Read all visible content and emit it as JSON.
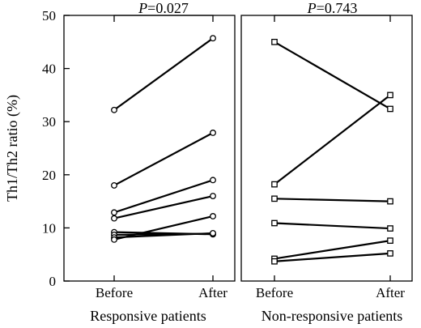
{
  "chart_data": {
    "type": "line",
    "ylabel": "Th1/Th2 ratio (%)",
    "ylim": [
      0,
      50
    ],
    "yticks": [
      0,
      10,
      20,
      30,
      40,
      50
    ],
    "panels": [
      {
        "xlabel": "Responsive patients",
        "categories": [
          "Before",
          "After"
        ],
        "p_value": "=0.027",
        "marker": "circle",
        "series": [
          {
            "values": [
              32.2,
              45.7
            ]
          },
          {
            "values": [
              18.0,
              27.9
            ]
          },
          {
            "values": [
              12.9,
              19.0
            ]
          },
          {
            "values": [
              11.8,
              16.0
            ]
          },
          {
            "values": [
              9.2,
              8.8
            ]
          },
          {
            "values": [
              8.7,
              8.9
            ]
          },
          {
            "values": [
              8.2,
              9.0
            ]
          },
          {
            "values": [
              7.8,
              12.2
            ]
          }
        ]
      },
      {
        "xlabel": "Non-responsive patients",
        "categories": [
          "Before",
          "After"
        ],
        "p_value": "=0.743",
        "marker": "square",
        "series": [
          {
            "values": [
              45.0,
              32.4
            ]
          },
          {
            "values": [
              18.2,
              35.0
            ]
          },
          {
            "values": [
              15.5,
              15.0
            ]
          },
          {
            "values": [
              10.9,
              9.9
            ]
          },
          {
            "values": [
              4.2,
              7.6
            ]
          },
          {
            "values": [
              3.7,
              5.2
            ]
          }
        ]
      }
    ]
  }
}
